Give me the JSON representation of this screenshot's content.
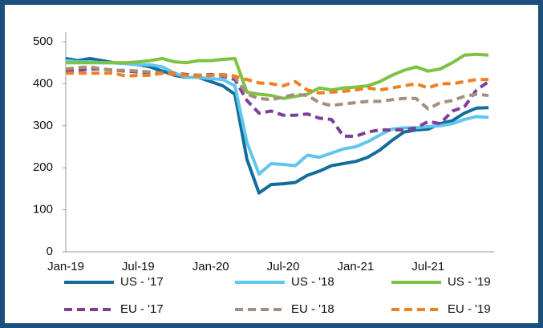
{
  "chart_data": {
    "type": "line",
    "categories": [
      "Jan-19",
      null,
      null,
      null,
      null,
      null,
      "Jul-19",
      null,
      null,
      null,
      null,
      null,
      "Jan-20",
      null,
      null,
      null,
      null,
      null,
      "Jul-20",
      null,
      null,
      null,
      null,
      null,
      "Jan-21",
      null,
      null,
      null,
      null,
      null,
      "Jul-21",
      null,
      null,
      null,
      null,
      null
    ],
    "ylim": [
      0,
      500
    ],
    "yticks": [
      0,
      100,
      200,
      300,
      400,
      500
    ],
    "series": [
      {
        "name": "US - '17",
        "color": "#136c99",
        "dashed": false,
        "values": [
          460,
          455,
          460,
          455,
          450,
          448,
          445,
          440,
          430,
          420,
          415,
          415,
          405,
          395,
          375,
          220,
          140,
          160,
          162,
          165,
          182,
          192,
          205,
          210,
          215,
          225,
          242,
          265,
          285,
          290,
          292,
          305,
          312,
          330,
          342,
          343
        ]
      },
      {
        "name": "US - '18",
        "color": "#5fc6ee",
        "dashed": false,
        "values": [
          455,
          452,
          452,
          450,
          450,
          448,
          445,
          445,
          440,
          425,
          415,
          415,
          412,
          410,
          395,
          260,
          185,
          210,
          208,
          205,
          230,
          225,
          235,
          245,
          250,
          262,
          278,
          292,
          295,
          295,
          298,
          300,
          305,
          315,
          322,
          320
        ]
      },
      {
        "name": "US - '19",
        "color": "#7dc242",
        "dashed": false,
        "values": [
          450,
          450,
          450,
          450,
          450,
          450,
          452,
          455,
          460,
          452,
          450,
          455,
          455,
          458,
          460,
          380,
          375,
          372,
          365,
          370,
          375,
          390,
          385,
          390,
          392,
          395,
          405,
          420,
          432,
          440,
          430,
          435,
          450,
          468,
          470,
          468
        ]
      },
      {
        "name": "EU - '17",
        "color": "#7b3f98",
        "dashed": true,
        "values": [
          430,
          432,
          435,
          435,
          432,
          430,
          428,
          425,
          425,
          425,
          422,
          420,
          422,
          418,
          410,
          360,
          330,
          335,
          325,
          325,
          328,
          318,
          315,
          275,
          275,
          285,
          290,
          290,
          290,
          295,
          310,
          305,
          335,
          345,
          385,
          405
        ]
      },
      {
        "name": "EU - '18",
        "color": "#a38f80",
        "dashed": true,
        "values": [
          435,
          438,
          440,
          435,
          432,
          432,
          430,
          428,
          425,
          422,
          420,
          420,
          420,
          420,
          415,
          375,
          365,
          362,
          368,
          375,
          372,
          355,
          348,
          352,
          355,
          358,
          358,
          362,
          365,
          365,
          340,
          355,
          360,
          370,
          375,
          372
        ]
      },
      {
        "name": "EU - '19",
        "color": "#f07f22",
        "dashed": true,
        "values": [
          425,
          425,
          425,
          425,
          425,
          418,
          420,
          420,
          425,
          425,
          420,
          418,
          420,
          422,
          418,
          410,
          402,
          400,
          395,
          405,
          385,
          378,
          380,
          382,
          385,
          390,
          385,
          390,
          395,
          400,
          390,
          400,
          400,
          405,
          410,
          410
        ]
      }
    ]
  }
}
